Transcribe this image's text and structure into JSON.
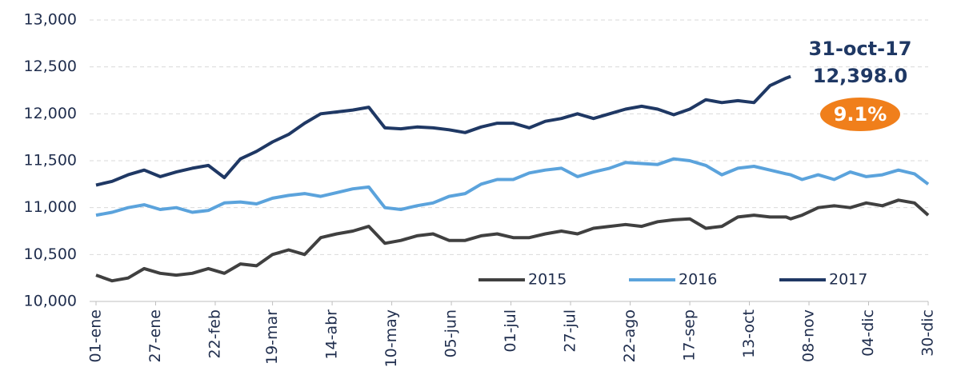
{
  "chart_data": {
    "type": "line",
    "x": [
      0,
      7,
      14,
      21,
      28,
      35,
      42,
      49,
      56,
      63,
      70,
      77,
      84,
      91,
      98,
      105,
      112,
      119,
      126,
      133,
      140,
      147,
      154,
      161,
      168,
      175,
      182,
      189,
      196,
      203,
      210,
      217,
      224,
      231,
      238,
      245,
      252,
      259,
      266,
      273,
      280,
      287,
      294,
      301,
      303,
      308,
      315,
      322,
      329,
      336,
      343,
      350,
      357,
      363
    ],
    "series": [
      {
        "name": "2015",
        "color": "#404040",
        "values": [
          10280,
          10220,
          10250,
          10350,
          10300,
          10280,
          10300,
          10350,
          10300,
          10400,
          10380,
          10500,
          10550,
          10500,
          10680,
          10720,
          10750,
          10800,
          10620,
          10650,
          10700,
          10720,
          10650,
          10650,
          10700,
          10720,
          10680,
          10680,
          10720,
          10750,
          10720,
          10780,
          10800,
          10820,
          10800,
          10850,
          10870,
          10880,
          10780,
          10800,
          10900,
          10920,
          10900,
          10900,
          10880,
          10920,
          11000,
          11020,
          11000,
          11050,
          11020,
          11080,
          11050,
          10920
        ]
      },
      {
        "name": "2016",
        "color": "#5ba3dc",
        "values": [
          10920,
          10950,
          11000,
          11030,
          10980,
          11000,
          10950,
          10970,
          11050,
          11060,
          11040,
          11100,
          11130,
          11150,
          11120,
          11160,
          11200,
          11220,
          11000,
          10980,
          11020,
          11050,
          11120,
          11150,
          11250,
          11300,
          11300,
          11370,
          11400,
          11420,
          11330,
          11380,
          11420,
          11480,
          11470,
          11460,
          11520,
          11500,
          11450,
          11350,
          11420,
          11440,
          11400,
          11360,
          11350,
          11300,
          11350,
          11300,
          11380,
          11330,
          11350,
          11400,
          11360,
          11250
        ]
      },
      {
        "name": "2017",
        "color": "#1f3864",
        "values": [
          11240,
          11280,
          11350,
          11400,
          11330,
          11380,
          11420,
          11450,
          11320,
          11520,
          11600,
          11700,
          11780,
          11900,
          12000,
          12020,
          12040,
          12070,
          11850,
          11840,
          11860,
          11850,
          11830,
          11800,
          11860,
          11900,
          11900,
          11850,
          11920,
          11950,
          12000,
          11950,
          12000,
          12050,
          12080,
          12050,
          11990,
          12050,
          12150,
          12120,
          12140,
          12120,
          12300,
          12380,
          12398,
          null,
          null,
          null,
          null,
          null,
          null,
          null,
          null,
          null
        ]
      }
    ],
    "xlim": [
      0,
      363
    ],
    "xticks": [
      {
        "value": 0,
        "label": "01-ene"
      },
      {
        "value": 26,
        "label": "27-ene"
      },
      {
        "value": 52,
        "label": "22-feb"
      },
      {
        "value": 77,
        "label": "19-mar"
      },
      {
        "value": 103,
        "label": "14-abr"
      },
      {
        "value": 129,
        "label": "10-may"
      },
      {
        "value": 155,
        "label": "05-jun"
      },
      {
        "value": 181,
        "label": "01-jul"
      },
      {
        "value": 207,
        "label": "27-jul"
      },
      {
        "value": 233,
        "label": "22-ago"
      },
      {
        "value": 259,
        "label": "17-sep"
      },
      {
        "value": 285,
        "label": "13-oct"
      },
      {
        "value": 311,
        "label": "08-nov"
      },
      {
        "value": 337,
        "label": "04-dic"
      },
      {
        "value": 363,
        "label": "30-dic"
      }
    ],
    "ylim": [
      10000,
      13000
    ],
    "yticks": [
      {
        "value": 10000,
        "label": "10,000"
      },
      {
        "value": 10500,
        "label": "10,500"
      },
      {
        "value": 11000,
        "label": "11,000"
      },
      {
        "value": 11500,
        "label": "11,500"
      },
      {
        "value": 12000,
        "label": "12,000"
      },
      {
        "value": 12500,
        "label": "12,500"
      },
      {
        "value": 13000,
        "label": "13,000"
      }
    ],
    "grid": true,
    "legend": "bottom-right",
    "annotation": {
      "date": "31-oct-17",
      "value": {
        "value": 12398,
        "label": "12,398.0"
      },
      "change": {
        "value": 9.1,
        "label": "9.1%",
        "color": "#f07f1b"
      }
    }
  }
}
